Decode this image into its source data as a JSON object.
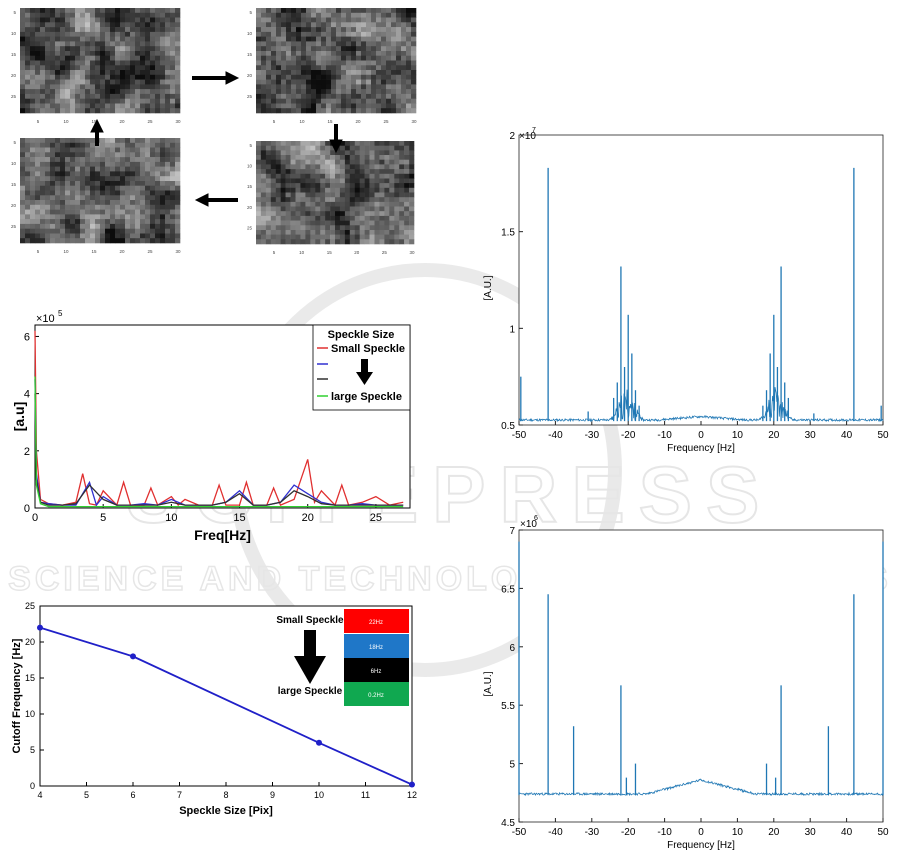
{
  "watermark": {
    "brand": "SCITEPRESS",
    "tagline": "SCIENCE AND TECHNOLOGY PUBLICATIONS"
  },
  "speckle_images": {
    "tick_labels": [
      "5",
      "10",
      "15",
      "20",
      "25",
      "30"
    ]
  },
  "chart_data": [
    {
      "id": "spectrum-speckle-size",
      "type": "line",
      "xlabel": "Freq[Hz]",
      "ylabel": "[a.u]",
      "y_exponent": "×10",
      "y_exponent_power": "5",
      "xlim": [
        0,
        27.5
      ],
      "ylim": [
        0,
        6.4
      ],
      "xticks": [
        "0",
        "5",
        "10",
        "15",
        "20",
        "25"
      ],
      "yticks": [
        "0",
        "2",
        "4",
        "6"
      ],
      "legend": {
        "title": "Speckle Size",
        "placement": "top-right",
        "entries": [
          "Small Speckle",
          "",
          "",
          "large Speckle"
        ]
      },
      "series": [
        {
          "name": "Small Speckle",
          "color": "#e03030",
          "x": [
            0,
            0.1,
            0.4,
            1,
            2,
            3,
            3.5,
            4,
            4.5,
            5,
            6,
            6.5,
            7,
            8,
            8.5,
            9,
            10,
            10.5,
            11,
            12,
            13,
            13.5,
            14,
            15,
            15.5,
            16,
            17,
            17.5,
            18,
            19,
            20,
            20.5,
            21,
            22,
            22.5,
            23,
            24,
            25,
            26,
            27
          ],
          "y": [
            6.2,
            2.0,
            0.3,
            0.15,
            0.1,
            0.2,
            1.2,
            0.15,
            0.1,
            0.6,
            0.1,
            0.9,
            0.1,
            0.1,
            0.7,
            0.1,
            0.4,
            0.1,
            0.3,
            0.1,
            0.1,
            0.8,
            0.1,
            0.1,
            0.9,
            0.1,
            0.1,
            0.7,
            0.1,
            0.3,
            1.7,
            0.2,
            0.6,
            0.1,
            0.8,
            0.1,
            0.2,
            0.4,
            0.1,
            0.2
          ]
        },
        {
          "name": "",
          "color": "#3030d0",
          "x": [
            0,
            0.1,
            0.4,
            1,
            2,
            3,
            4,
            4.5,
            5,
            6,
            7,
            8,
            9,
            10,
            11,
            12,
            13,
            14,
            15,
            16,
            17,
            18,
            19,
            20,
            21,
            22,
            23,
            24,
            25,
            26,
            27
          ],
          "y": [
            4.5,
            1.2,
            0.2,
            0.15,
            0.1,
            0.1,
            0.9,
            0.1,
            0.4,
            0.1,
            0.1,
            0.15,
            0.1,
            0.3,
            0.1,
            0.1,
            0.1,
            0.2,
            0.6,
            0.1,
            0.1,
            0.2,
            0.8,
            0.5,
            0.2,
            0.1,
            0.1,
            0.15,
            0.1,
            0.1,
            0.1
          ]
        },
        {
          "name": "",
          "color": "#303030",
          "x": [
            0,
            0.1,
            0.4,
            1,
            2,
            3,
            4,
            5,
            6,
            7,
            8,
            9,
            10,
            11,
            12,
            13,
            14,
            15,
            16,
            17,
            18,
            19,
            20,
            21,
            22,
            23,
            24,
            25,
            26,
            27
          ],
          "y": [
            4.0,
            1.0,
            0.2,
            0.1,
            0.1,
            0.15,
            0.8,
            0.3,
            0.1,
            0.1,
            0.1,
            0.1,
            0.2,
            0.1,
            0.1,
            0.1,
            0.2,
            0.5,
            0.1,
            0.1,
            0.2,
            0.6,
            0.4,
            0.15,
            0.1,
            0.1,
            0.1,
            0.1,
            0.1,
            0.1
          ]
        },
        {
          "name": "large Speckle",
          "color": "#30d030",
          "x": [
            0,
            0.1,
            0.4,
            1,
            2,
            3,
            4,
            5,
            6,
            8,
            10,
            12,
            14,
            16,
            18,
            20,
            22,
            24,
            26,
            27
          ],
          "y": [
            4.6,
            0.8,
            0.15,
            0.05,
            0.05,
            0.05,
            0.05,
            0.05,
            0.05,
            0.05,
            0.05,
            0.05,
            0.05,
            0.05,
            0.05,
            0.05,
            0.05,
            0.05,
            0.05,
            0.05
          ]
        }
      ]
    },
    {
      "id": "cutoff-frequency",
      "type": "line",
      "xlabel": "Speckle Size [Pix]",
      "ylabel": "Cutoff Frequency [Hz]",
      "xlim": [
        4,
        12
      ],
      "ylim": [
        0,
        25
      ],
      "xticks": [
        "4",
        "5",
        "6",
        "7",
        "8",
        "9",
        "10",
        "11",
        "12"
      ],
      "yticks": [
        "0",
        "5",
        "10",
        "15",
        "20",
        "25"
      ],
      "color": "#2020c8",
      "x": [
        4,
        6,
        10,
        12
      ],
      "y": [
        22,
        18,
        6,
        0.2
      ],
      "annotation": {
        "top": "Small Speckle",
        "bottom": "large Speckle"
      },
      "color_bars": [
        {
          "label": "22Hz",
          "color": "#ff0000"
        },
        {
          "label": "18Hz",
          "color": "#1f77c8"
        },
        {
          "label": "6Hz",
          "color": "#000000"
        },
        {
          "label": "0.2Hz",
          "color": "#10a850"
        }
      ]
    },
    {
      "id": "fft-top",
      "type": "line",
      "xlabel": "Frequency [Hz]",
      "ylabel": "[A.U.]",
      "y_exponent": "2",
      "y_exponent_power": "×10",
      "y_exponent_power2": "7",
      "xlim": [
        -50,
        50
      ],
      "ylim": [
        0.5,
        2.0
      ],
      "xticks": [
        "-50",
        "-40",
        "-30",
        "-20",
        "-10",
        "0",
        "10",
        "20",
        "30",
        "40",
        "50"
      ],
      "yticks": [
        "0.5",
        "1",
        "1.5"
      ],
      "ytop": "2",
      "color": "#1f77b4",
      "peaks": [
        {
          "x": -42,
          "y": 1.83
        },
        {
          "x": 42,
          "y": 1.83
        },
        {
          "x": -22,
          "y": 1.32
        },
        {
          "x": 22,
          "y": 1.32
        },
        {
          "x": -20,
          "y": 1.07
        },
        {
          "x": 20,
          "y": 1.07
        },
        {
          "x": -19,
          "y": 0.87
        },
        {
          "x": 19,
          "y": 0.87
        },
        {
          "x": -21,
          "y": 0.8
        },
        {
          "x": 21,
          "y": 0.8
        },
        {
          "x": -23,
          "y": 0.72
        },
        {
          "x": 23,
          "y": 0.72
        },
        {
          "x": -18,
          "y": 0.68
        },
        {
          "x": 18,
          "y": 0.68
        },
        {
          "x": -24,
          "y": 0.64
        },
        {
          "x": 24,
          "y": 0.64
        },
        {
          "x": -17,
          "y": 0.6
        },
        {
          "x": 17,
          "y": 0.6
        },
        {
          "x": -49.5,
          "y": 0.75
        },
        {
          "x": 49.5,
          "y": 0.6
        },
        {
          "x": -31,
          "y": 0.57
        },
        {
          "x": 31,
          "y": 0.56
        }
      ],
      "baseline": 0.52
    },
    {
      "id": "fft-bottom",
      "type": "line",
      "xlabel": "Frequency [Hz]",
      "ylabel": "[A.U.]",
      "y_exponent": "×10",
      "y_exponent_power": "6",
      "xlim": [
        -50,
        50
      ],
      "ylim": [
        4.5,
        7.0
      ],
      "xticks": [
        "-50",
        "-40",
        "-30",
        "-20",
        "-10",
        "0",
        "10",
        "20",
        "30",
        "40",
        "50"
      ],
      "yticks": [
        "4.5",
        "5",
        "5.5",
        "6",
        "6.5",
        "7"
      ],
      "color": "#1f77b4",
      "peaks": [
        {
          "x": -42,
          "y": 6.45
        },
        {
          "x": 42,
          "y": 6.45
        },
        {
          "x": -35,
          "y": 5.32
        },
        {
          "x": 35,
          "y": 5.32
        },
        {
          "x": -22,
          "y": 5.67
        },
        {
          "x": 22,
          "y": 5.67
        },
        {
          "x": -18,
          "y": 5.0
        },
        {
          "x": 18,
          "y": 5.0
        },
        {
          "x": -20.5,
          "y": 4.88
        },
        {
          "x": 20.5,
          "y": 4.88
        },
        {
          "x": -50,
          "y": 6.9
        },
        {
          "x": 50,
          "y": 6.9
        }
      ],
      "baseline": 4.73,
      "bump_center": 0,
      "bump_height": 4.85
    }
  ]
}
